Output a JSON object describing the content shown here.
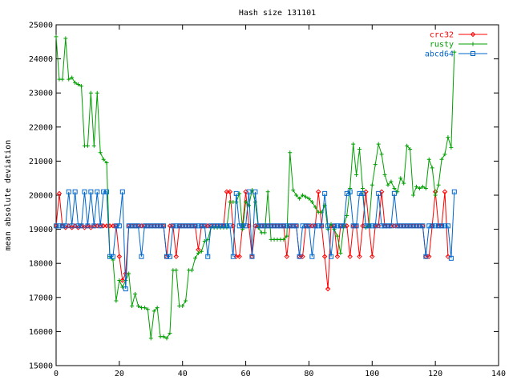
{
  "chart_data": {
    "type": "line",
    "title": "Hash size 131101",
    "ylabel": "mean absolute deviation",
    "xlabel": "",
    "xlim": [
      0,
      140
    ],
    "ylim": [
      15000,
      25000
    ],
    "x_ticks": [
      0,
      20,
      40,
      60,
      80,
      100,
      120,
      140
    ],
    "y_ticks": [
      15000,
      16000,
      17000,
      18000,
      19000,
      20000,
      21000,
      22000,
      23000,
      24000,
      25000
    ],
    "legend_position": "top-right",
    "grid": false,
    "series": [
      {
        "name": "crc32",
        "color": "#ff0000",
        "marker": "diamond",
        "y": [
          19100,
          20050,
          19100,
          19050,
          19100,
          19050,
          19100,
          19050,
          19100,
          19050,
          19100,
          19050,
          19100,
          19100,
          19100,
          19100,
          19100,
          19100,
          19100,
          19100,
          18200,
          17500,
          17700,
          19100,
          19100,
          19100,
          19100,
          19100,
          19100,
          19100,
          19100,
          19100,
          19100,
          19100,
          19100,
          18200,
          19100,
          19100,
          18200,
          19100,
          19100,
          19100,
          19100,
          19100,
          19100,
          18400,
          19100,
          19100,
          19100,
          19100,
          19100,
          19100,
          19100,
          19100,
          20100,
          20100,
          19100,
          18200,
          18200,
          19100,
          20100,
          19100,
          18200,
          19100,
          19100,
          19100,
          19100,
          19100,
          19100,
          19100,
          19100,
          19100,
          19100,
          18200,
          19100,
          19100,
          19100,
          18200,
          18200,
          19100,
          19100,
          19100,
          19100,
          20100,
          19100,
          18200,
          17250,
          19100,
          19100,
          18200,
          19100,
          19100,
          19100,
          18200,
          19100,
          19100,
          18200,
          19100,
          20100,
          19100,
          18200,
          19100,
          19100,
          20100,
          19100,
          19100,
          19100,
          19100,
          19100,
          19100,
          19100,
          19100,
          19100,
          19100,
          19100,
          19100,
          19100,
          18200,
          18200,
          19100,
          20100,
          19100,
          19100,
          20100,
          18200
        ]
      },
      {
        "name": "rusty",
        "color": "#00a000",
        "marker": "plus",
        "y": [
          24650,
          23400,
          23400,
          24600,
          23400,
          23450,
          23300,
          23250,
          23200,
          21450,
          21450,
          23000,
          21450,
          23000,
          21250,
          21050,
          20950,
          18200,
          18100,
          16900,
          17500,
          17300,
          17500,
          17700,
          16750,
          17100,
          16750,
          16700,
          16700,
          16650,
          15800,
          16600,
          16700,
          15850,
          15850,
          15800,
          15950,
          17800,
          17800,
          16750,
          16750,
          16900,
          17800,
          17800,
          18150,
          18300,
          18350,
          18650,
          18700,
          19050,
          19050,
          19050,
          19050,
          19050,
          19050,
          19800,
          19800,
          19800,
          20050,
          19000,
          19800,
          19700,
          20150,
          19800,
          19050,
          18900,
          18900,
          20100,
          18700,
          18700,
          18700,
          18700,
          18700,
          18800,
          21250,
          20150,
          20000,
          19900,
          20000,
          19950,
          19900,
          19800,
          19650,
          19500,
          19500,
          19700,
          19000,
          19150,
          19000,
          18800,
          18300,
          19100,
          19400,
          20200,
          21500,
          20600,
          21350,
          20200,
          19050,
          19100,
          20300,
          20900,
          21500,
          21200,
          20600,
          20300,
          20400,
          20200,
          20100,
          20500,
          20350,
          21450,
          21350,
          20000,
          20250,
          20200,
          20250,
          20200,
          21050,
          20800,
          20000,
          20300,
          21050,
          21200,
          21700,
          21400,
          24200
        ]
      },
      {
        "name": "abcd64",
        "color": "#0066cc",
        "marker": "square",
        "y": [
          19100,
          19100,
          19100,
          19100,
          20100,
          19100,
          20100,
          19100,
          19100,
          20100,
          19100,
          20100,
          19100,
          20100,
          19100,
          20100,
          20100,
          18200,
          18200,
          19100,
          19100,
          20100,
          17250,
          19100,
          19100,
          19100,
          19100,
          18200,
          19100,
          19100,
          19100,
          19100,
          19100,
          19100,
          19100,
          18200,
          18200,
          19100,
          19100,
          19100,
          19100,
          19100,
          19100,
          19100,
          19100,
          19100,
          19100,
          19100,
          18200,
          19100,
          19100,
          19100,
          19100,
          19100,
          19100,
          19100,
          18200,
          20050,
          19100,
          19100,
          19100,
          20100,
          18200,
          20100,
          19100,
          19100,
          19100,
          19100,
          19100,
          19100,
          19100,
          19100,
          19100,
          19100,
          19100,
          19100,
          19100,
          18200,
          19100,
          19100,
          19100,
          18200,
          19100,
          19100,
          19100,
          20050,
          19100,
          18200,
          19100,
          19100,
          19100,
          19100,
          20050,
          20100,
          19100,
          19100,
          20050,
          20050,
          19100,
          19100,
          19100,
          19100,
          20050,
          19100,
          19100,
          19100,
          19100,
          20050,
          19100,
          19100,
          19100,
          19100,
          19100,
          19100,
          19100,
          19100,
          19100,
          18200,
          19100,
          19100,
          19100,
          19100,
          19100,
          19100,
          19100,
          18150,
          20100
        ]
      }
    ]
  }
}
